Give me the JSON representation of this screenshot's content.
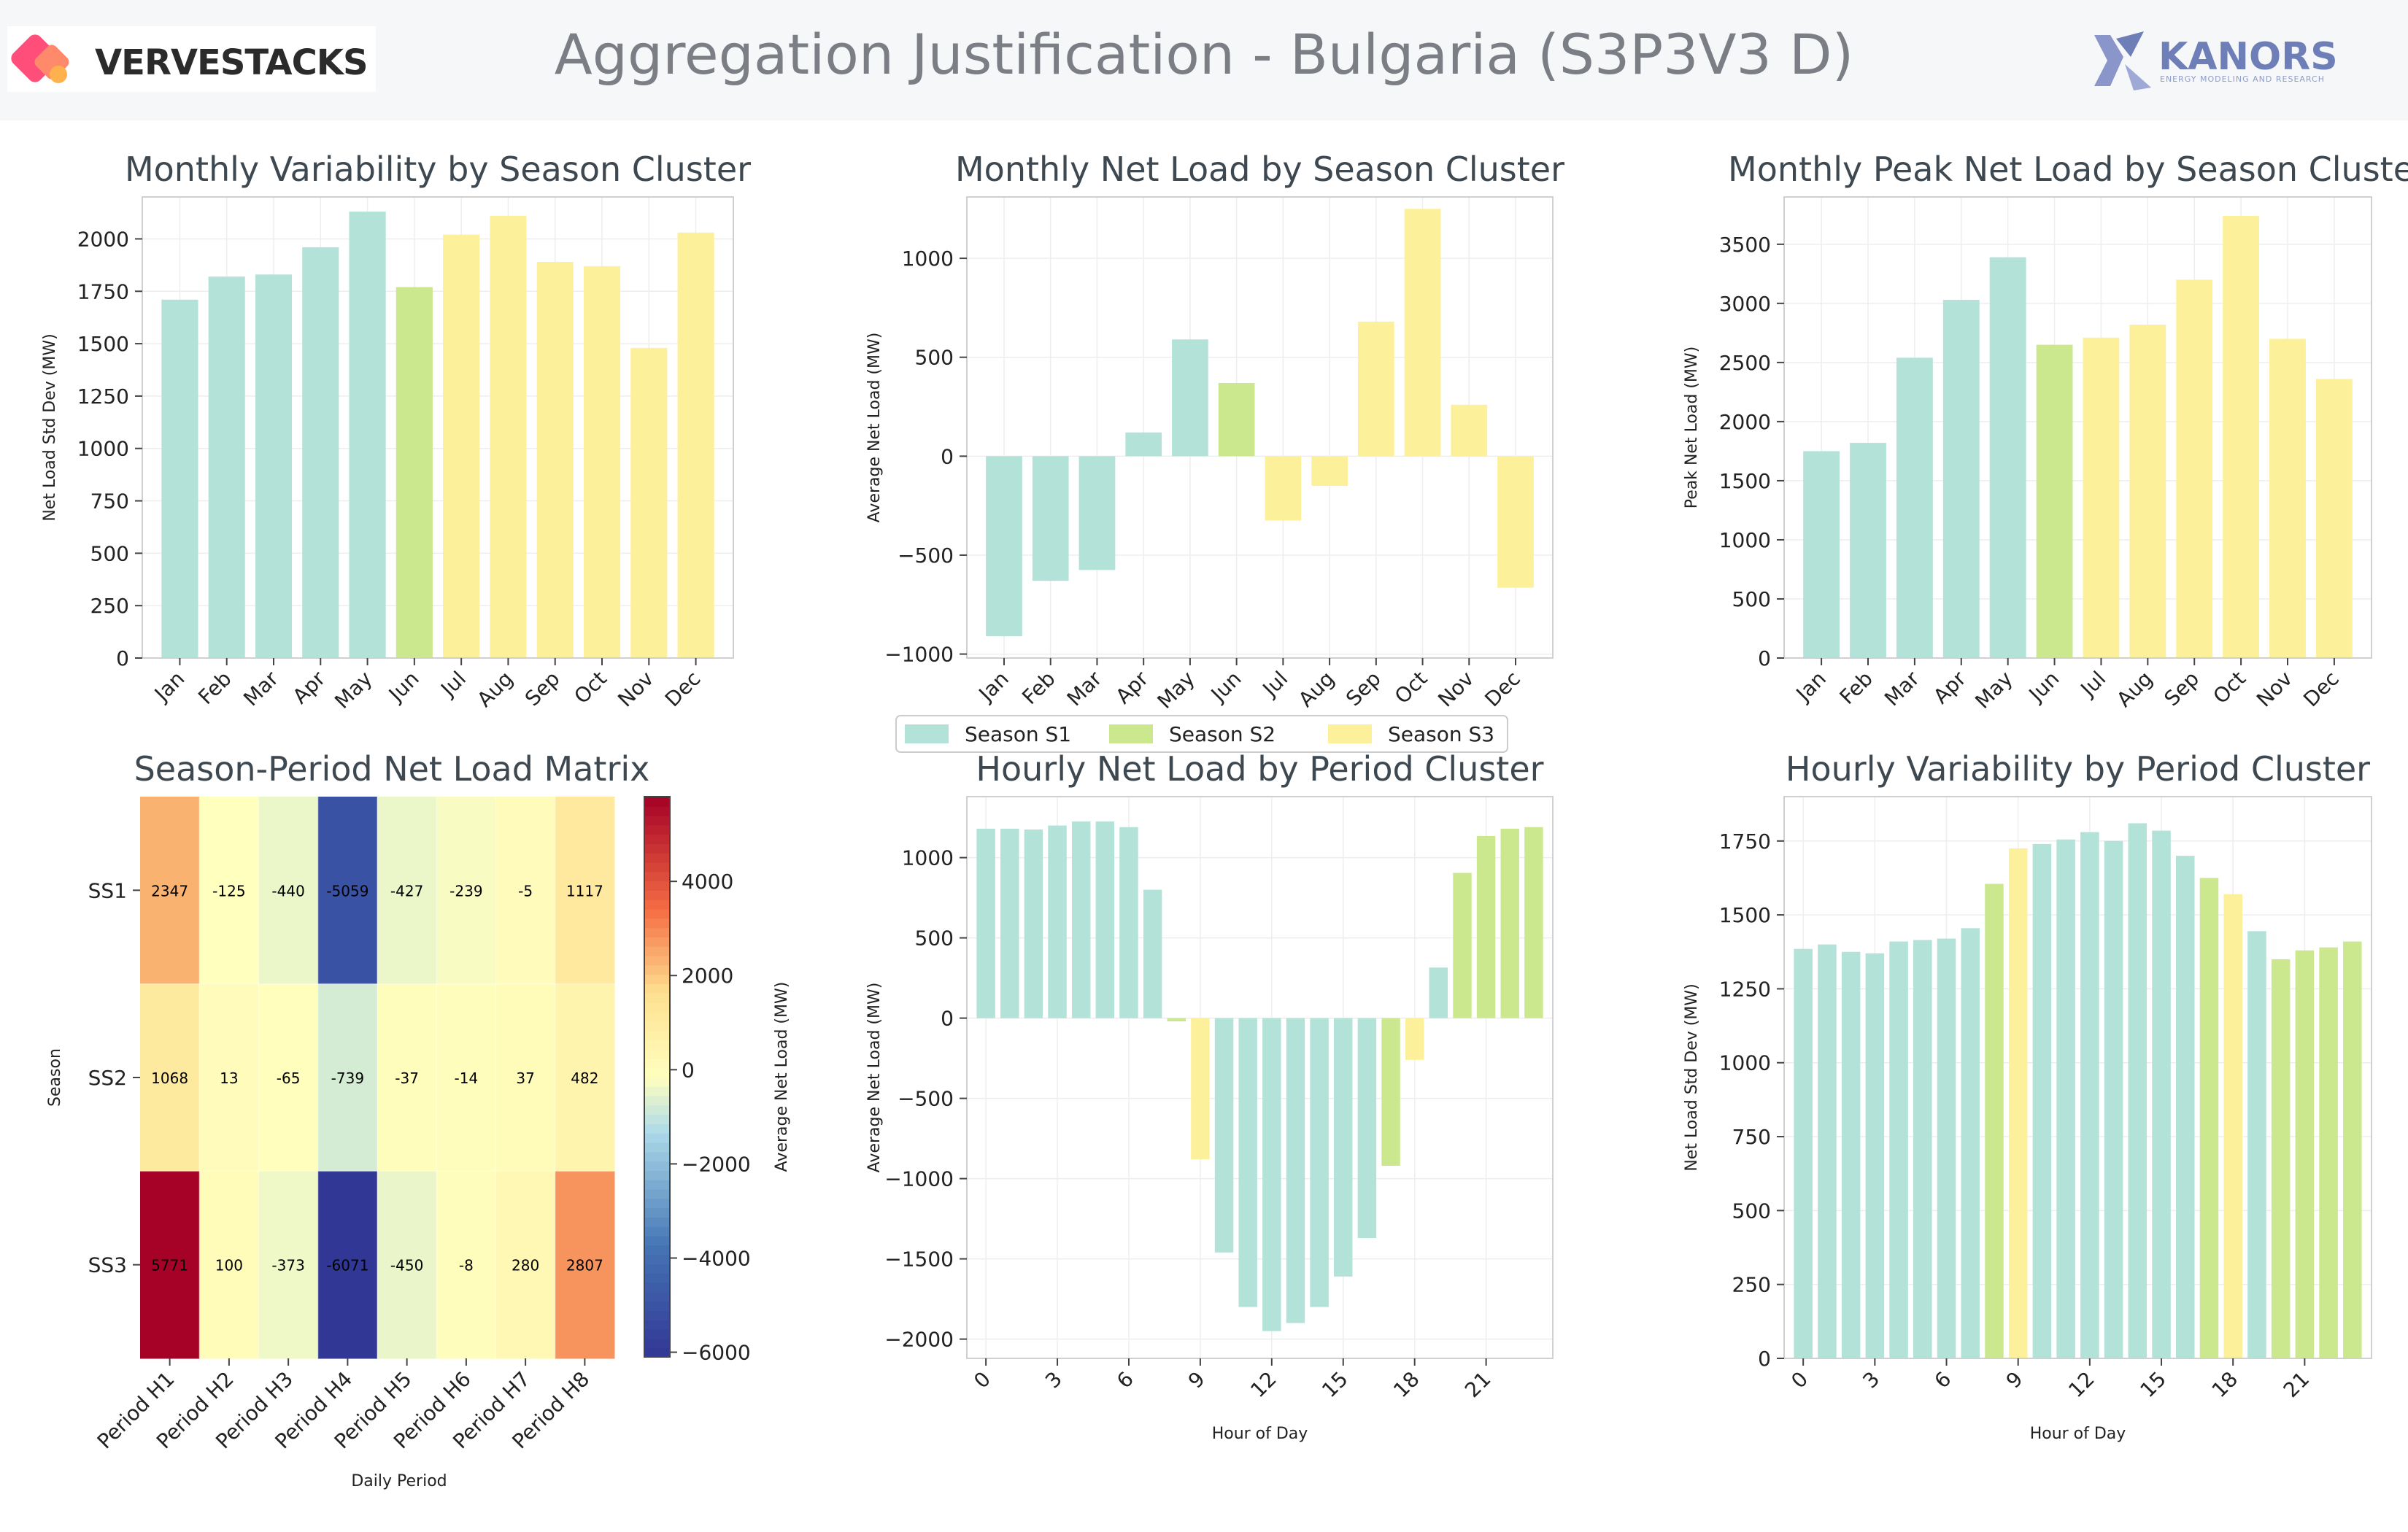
{
  "header": {
    "title": "Aggregation Justification - Bulgaria (S3P3V3 D)",
    "left_logo": "VERVESTACKS",
    "right_logo": "KANORS",
    "right_logo_sub": "ENERGY MODELING AND RESEARCH"
  },
  "colors": {
    "S1": "#b2e2d8",
    "S2": "#cce88f",
    "S3": "#fdf09a",
    "grid": "#eeeeee",
    "axis": "#d0d0d0"
  },
  "legend": {
    "items": [
      {
        "label": "Season S1",
        "color_key": "S1"
      },
      {
        "label": "Season S2",
        "color_key": "S2"
      },
      {
        "label": "Season S3",
        "color_key": "S3"
      }
    ]
  },
  "chart_data": [
    {
      "id": "monthly-variability",
      "type": "bar",
      "title": "Monthly Variability by Season Cluster",
      "xlabel": "",
      "ylabel": "Net Load Std Dev (MW)",
      "categories": [
        "Jan",
        "Feb",
        "Mar",
        "Apr",
        "May",
        "Jun",
        "Jul",
        "Aug",
        "Sep",
        "Oct",
        "Nov",
        "Dec"
      ],
      "values": [
        1710,
        1820,
        1830,
        1960,
        2130,
        1770,
        2020,
        2110,
        1890,
        1870,
        1480,
        2030
      ],
      "clusters": [
        "S1",
        "S1",
        "S1",
        "S1",
        "S1",
        "S2",
        "S3",
        "S3",
        "S3",
        "S3",
        "S3",
        "S3"
      ],
      "ylim": [
        0,
        2200
      ],
      "yticks": [
        0,
        250,
        500,
        750,
        1000,
        1250,
        1500,
        1750,
        2000
      ],
      "grid": true
    },
    {
      "id": "monthly-net-load",
      "type": "bar",
      "title": "Monthly Net Load by Season Cluster",
      "xlabel": "",
      "ylabel": "Average Net Load (MW)",
      "categories": [
        "Jan",
        "Feb",
        "Mar",
        "Apr",
        "May",
        "Jun",
        "Jul",
        "Aug",
        "Sep",
        "Oct",
        "Nov",
        "Dec"
      ],
      "values": [
        -910,
        -630,
        -575,
        120,
        590,
        370,
        -325,
        -150,
        680,
        1250,
        260,
        -665
      ],
      "clusters": [
        "S1",
        "S1",
        "S1",
        "S1",
        "S1",
        "S2",
        "S3",
        "S3",
        "S3",
        "S3",
        "S3",
        "S3"
      ],
      "ylim": [
        -1020,
        1310
      ],
      "yticks": [
        -1000,
        -500,
        0,
        500,
        1000
      ],
      "grid": true
    },
    {
      "id": "monthly-peak",
      "type": "bar",
      "title": "Monthly Peak Net Load by Season Cluster",
      "xlabel": "",
      "ylabel": "Peak Net Load (MW)",
      "categories": [
        "Jan",
        "Feb",
        "Mar",
        "Apr",
        "May",
        "Jun",
        "Jul",
        "Aug",
        "Sep",
        "Oct",
        "Nov",
        "Dec"
      ],
      "values": [
        1750,
        1820,
        2540,
        3030,
        3390,
        2650,
        2710,
        2820,
        3200,
        3740,
        2700,
        2360
      ],
      "clusters": [
        "S1",
        "S1",
        "S1",
        "S1",
        "S1",
        "S2",
        "S3",
        "S3",
        "S3",
        "S3",
        "S3",
        "S3"
      ],
      "ylim": [
        0,
        3900
      ],
      "yticks": [
        0,
        500,
        1000,
        1500,
        2000,
        2500,
        3000,
        3500
      ],
      "grid": true
    },
    {
      "id": "season-period-matrix",
      "type": "heatmap",
      "title": "Season-Period Net Load Matrix",
      "xlabel": "Daily Period",
      "ylabel": "Season",
      "x": [
        "Period H1",
        "Period H2",
        "Period H3",
        "Period H4",
        "Period H5",
        "Period H6",
        "Period H7",
        "Period H8"
      ],
      "y": [
        "SS1",
        "SS2",
        "SS3"
      ],
      "values": [
        [
          2347,
          -125,
          -440,
          -5059,
          -427,
          -239,
          -5,
          1117
        ],
        [
          1068,
          13,
          -65,
          -739,
          -37,
          -14,
          37,
          482
        ],
        [
          5771,
          100,
          -373,
          -6071,
          -450,
          -8,
          280,
          2807
        ]
      ],
      "colorbar": {
        "label": "Average Net Load (MW)",
        "range": [
          -6100,
          5800
        ],
        "ticks": [
          -6000,
          -4000,
          -2000,
          0,
          2000,
          4000
        ]
      }
    },
    {
      "id": "hourly-net-load",
      "type": "bar",
      "title": "Hourly Net Load by Period Cluster",
      "xlabel": "Hour of Day",
      "ylabel": "Average Net Load (MW)",
      "x": [
        0,
        1,
        2,
        3,
        4,
        5,
        6,
        7,
        8,
        9,
        10,
        11,
        12,
        13,
        14,
        15,
        16,
        17,
        18,
        19,
        20,
        21,
        22,
        23
      ],
      "values": [
        1180,
        1180,
        1175,
        1200,
        1225,
        1225,
        1190,
        800,
        -20,
        -880,
        -1460,
        -1800,
        -1950,
        -1900,
        -1800,
        -1610,
        -1370,
        -920,
        -260,
        315,
        905,
        1135,
        1180,
        1190
      ],
      "clusters": [
        "S1",
        "S1",
        "S1",
        "S1",
        "S1",
        "S1",
        "S1",
        "S1",
        "S2",
        "S3",
        "S1",
        "S1",
        "S1",
        "S1",
        "S1",
        "S1",
        "S1",
        "S2",
        "S3",
        "S1",
        "S2",
        "S2",
        "S2",
        "S2"
      ],
      "ylim": [
        -2120,
        1380
      ],
      "xticks": [
        0,
        3,
        6,
        9,
        12,
        15,
        18,
        21
      ],
      "yticks": [
        -2000,
        -1500,
        -1000,
        -500,
        0,
        500,
        1000
      ],
      "grid": true
    },
    {
      "id": "hourly-variability",
      "type": "bar",
      "title": "Hourly Variability by Period Cluster",
      "xlabel": "Hour of Day",
      "ylabel": "Net Load Std Dev (MW)",
      "x": [
        0,
        1,
        2,
        3,
        4,
        5,
        6,
        7,
        8,
        9,
        10,
        11,
        12,
        13,
        14,
        15,
        16,
        17,
        18,
        19,
        20,
        21,
        22,
        23
      ],
      "values": [
        1385,
        1400,
        1375,
        1370,
        1410,
        1415,
        1420,
        1455,
        1605,
        1725,
        1740,
        1755,
        1780,
        1750,
        1810,
        1785,
        1700,
        1625,
        1570,
        1445,
        1350,
        1380,
        1390,
        1410
      ],
      "clusters": [
        "S1",
        "S1",
        "S1",
        "S1",
        "S1",
        "S1",
        "S1",
        "S1",
        "S2",
        "S3",
        "S1",
        "S1",
        "S1",
        "S1",
        "S1",
        "S1",
        "S1",
        "S2",
        "S3",
        "S1",
        "S2",
        "S2",
        "S2",
        "S2"
      ],
      "ylim": [
        0,
        1900
      ],
      "xticks": [
        0,
        3,
        6,
        9,
        12,
        15,
        18,
        21
      ],
      "yticks": [
        0,
        250,
        500,
        750,
        1000,
        1250,
        1500,
        1750
      ],
      "grid": true
    }
  ]
}
